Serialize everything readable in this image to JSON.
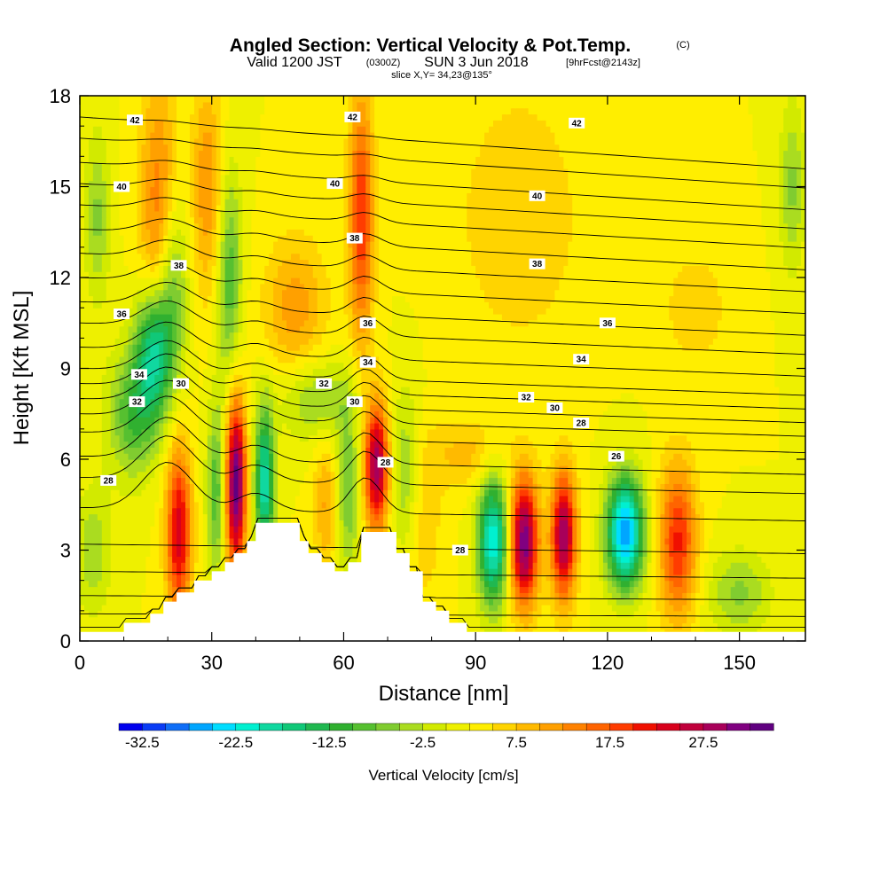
{
  "header": {
    "title": "Angled Section: Vertical Velocity & Pot.Temp.",
    "copyright": "(C)",
    "valid_main": "Valid 1200 JST",
    "valid_utc": "(0300Z)",
    "valid_date": "SUN 3 Jun 2018",
    "forecast": "[9hrFcst@2143z]",
    "slice": "slice X,Y= 34,23@135°"
  },
  "chart_data": {
    "type": "heatmap",
    "title": "Angled Section: Vertical Velocity & Pot.Temp.",
    "xlabel": "Distance [nm]",
    "ylabel": "Height [Kft MSL]",
    "xlim": [
      0,
      165
    ],
    "ylim": [
      0,
      18
    ],
    "xticks": [
      "0",
      "30",
      "60",
      "90",
      "120",
      "150"
    ],
    "yticks": [
      "0",
      "3",
      "6",
      "9",
      "12",
      "15",
      "18"
    ],
    "colorbar": {
      "label": "Vertical Velocity [cm/s]",
      "tick_labels": [
        "-32.5",
        "-22.5",
        "-12.5",
        "-2.5",
        "7.5",
        "17.5",
        "27.5"
      ],
      "levels": [
        -35,
        -32.5,
        -30,
        -27.5,
        -25,
        -22.5,
        -20,
        -17.5,
        -15,
        -12.5,
        -10,
        -7.5,
        -5,
        -2.5,
        0,
        2.5,
        5,
        7.5,
        10,
        12.5,
        15,
        17.5,
        20,
        22.5,
        25,
        27.5,
        30,
        32.5,
        35
      ],
      "colors": [
        "#0000ee",
        "#0a3cf5",
        "#0f6ef7",
        "#00a6ff",
        "#00ddff",
        "#00f0d0",
        "#10d8a0",
        "#10c878",
        "#20b850",
        "#30b030",
        "#56c030",
        "#80cc30",
        "#aadc20",
        "#d2ea00",
        "#eef000",
        "#ffee00",
        "#ffd400",
        "#ffba00",
        "#ffa000",
        "#ff8200",
        "#ff6400",
        "#ff3c00",
        "#f01000",
        "#d8001c",
        "#c0003c",
        "#a8005a",
        "#800080",
        "#600080"
      ]
    },
    "terrain_kft": [
      [
        0,
        0.3
      ],
      [
        10,
        0.3
      ],
      [
        10,
        0.6
      ],
      [
        16,
        0.6
      ],
      [
        16,
        0.9
      ],
      [
        19,
        0.9
      ],
      [
        19,
        1.3
      ],
      [
        22,
        1.3
      ],
      [
        22,
        1.6
      ],
      [
        26,
        1.6
      ],
      [
        26,
        2.0
      ],
      [
        30,
        2.0
      ],
      [
        30,
        2.3
      ],
      [
        33,
        2.3
      ],
      [
        33,
        2.6
      ],
      [
        35,
        2.6
      ],
      [
        35,
        2.9
      ],
      [
        38,
        2.9
      ],
      [
        38,
        3.3
      ],
      [
        40,
        3.3
      ],
      [
        40,
        3.9
      ],
      [
        50,
        3.9
      ],
      [
        50,
        3.3
      ],
      [
        52,
        3.3
      ],
      [
        52,
        2.9
      ],
      [
        55,
        2.9
      ],
      [
        55,
        2.6
      ],
      [
        58,
        2.6
      ],
      [
        58,
        2.3
      ],
      [
        61,
        2.3
      ],
      [
        61,
        2.6
      ],
      [
        64,
        2.6
      ],
      [
        64,
        3.6
      ],
      [
        72,
        3.6
      ],
      [
        72,
        2.9
      ],
      [
        75,
        2.9
      ],
      [
        75,
        2.3
      ],
      [
        78,
        2.3
      ],
      [
        78,
        1.3
      ],
      [
        81,
        1.3
      ],
      [
        81,
        1.0
      ],
      [
        84,
        1.0
      ],
      [
        84,
        0.6
      ],
      [
        88,
        0.6
      ],
      [
        88,
        0.3
      ],
      [
        165,
        0.3
      ]
    ],
    "velocity_cells": [
      {
        "x": 4,
        "y": 14,
        "amp": -8,
        "sx": 2,
        "sy": 2
      },
      {
        "x": 18,
        "y": 14,
        "amp": 13,
        "sx": 3,
        "sy": 3.2
      },
      {
        "x": 21,
        "y": 12,
        "amp": -11,
        "sx": 2.5,
        "sy": 2.2
      },
      {
        "x": 17,
        "y": 9.6,
        "amp": -22,
        "sx": 3,
        "sy": 1.6
      },
      {
        "x": 12,
        "y": 7.5,
        "amp": -12,
        "sx": 4,
        "sy": 1.5
      },
      {
        "x": 22.5,
        "y": 3.6,
        "amp": 22,
        "sx": 2,
        "sy": 2
      },
      {
        "x": 29,
        "y": 15,
        "amp": 10,
        "sx": 2.5,
        "sy": 2.5
      },
      {
        "x": 34,
        "y": 12,
        "amp": -12,
        "sx": 2,
        "sy": 2.5
      },
      {
        "x": 31,
        "y": 5,
        "amp": -12,
        "sx": 1.5,
        "sy": 2
      },
      {
        "x": 35.5,
        "y": 5.2,
        "amp": 32,
        "sx": 1.6,
        "sy": 2
      },
      {
        "x": 42,
        "y": 5.2,
        "amp": -22,
        "sx": 1.6,
        "sy": 1.8
      },
      {
        "x": 49,
        "y": 11,
        "amp": 9,
        "sx": 5,
        "sy": 1.6
      },
      {
        "x": 54,
        "y": 8,
        "amp": -8,
        "sx": 6,
        "sy": 1
      },
      {
        "x": 56,
        "y": 4.5,
        "amp": 8,
        "sx": 2,
        "sy": 1.6
      },
      {
        "x": 61,
        "y": 5,
        "amp": -10,
        "sx": 2,
        "sy": 2
      },
      {
        "x": 64,
        "y": 14,
        "amp": 17,
        "sx": 2,
        "sy": 3
      },
      {
        "x": 67.5,
        "y": 5.8,
        "amp": 27,
        "sx": 2,
        "sy": 1.5
      },
      {
        "x": 74,
        "y": 5.5,
        "amp": -8,
        "sx": 2.5,
        "sy": 2
      },
      {
        "x": 78,
        "y": 4,
        "amp": 5,
        "sx": 3,
        "sy": 2
      },
      {
        "x": 94,
        "y": 3.3,
        "amp": -25,
        "sx": 2.5,
        "sy": 1.5
      },
      {
        "x": 101,
        "y": 3.3,
        "amp": 30,
        "sx": 2.3,
        "sy": 1.5
      },
      {
        "x": 110,
        "y": 3.5,
        "amp": 27,
        "sx": 2,
        "sy": 1.5
      },
      {
        "x": 124,
        "y": 3.6,
        "amp": -30,
        "sx": 3,
        "sy": 1.3
      },
      {
        "x": 136,
        "y": 3.3,
        "amp": 18,
        "sx": 3,
        "sy": 1.8
      },
      {
        "x": 100,
        "y": 14,
        "amp": 5,
        "sx": 10,
        "sy": 3
      },
      {
        "x": 140,
        "y": 11,
        "amp": 4,
        "sx": 6,
        "sy": 1.5
      },
      {
        "x": 162,
        "y": 15,
        "amp": -8,
        "sx": 2,
        "sy": 2
      },
      {
        "x": 3,
        "y": 3,
        "amp": -7,
        "sx": 3,
        "sy": 1.5
      },
      {
        "x": 150,
        "y": 1.6,
        "amp": -8,
        "sx": 5,
        "sy": 1
      },
      {
        "x": 88,
        "y": 6.2,
        "amp": 6,
        "sx": 6,
        "sy": 0.8
      }
    ],
    "theta_labels": [
      {
        "text": "42",
        "x": 12.5,
        "y": 17.2
      },
      {
        "text": "42",
        "x": 62,
        "y": 17.3
      },
      {
        "text": "42",
        "x": 113,
        "y": 17.1
      },
      {
        "text": "40",
        "x": 9.5,
        "y": 15.0
      },
      {
        "text": "40",
        "x": 58,
        "y": 15.1
      },
      {
        "text": "40",
        "x": 104,
        "y": 14.7
      },
      {
        "text": "38",
        "x": 22.5,
        "y": 12.4
      },
      {
        "text": "38",
        "x": 62.5,
        "y": 13.3
      },
      {
        "text": "38",
        "x": 104,
        "y": 12.45
      },
      {
        "text": "36",
        "x": 9.5,
        "y": 10.8
      },
      {
        "text": "36",
        "x": 65.5,
        "y": 10.5
      },
      {
        "text": "36",
        "x": 120,
        "y": 10.5
      },
      {
        "text": "34",
        "x": 13.5,
        "y": 8.8
      },
      {
        "text": "34",
        "x": 65.5,
        "y": 9.2
      },
      {
        "text": "34",
        "x": 114,
        "y": 9.3
      },
      {
        "text": "32",
        "x": 13,
        "y": 7.9
      },
      {
        "text": "32",
        "x": 55.5,
        "y": 8.5
      },
      {
        "text": "32",
        "x": 101.5,
        "y": 8.05
      },
      {
        "text": "30",
        "x": 23,
        "y": 8.5
      },
      {
        "text": "30",
        "x": 62.5,
        "y": 7.9
      },
      {
        "text": "30",
        "x": 108,
        "y": 7.7
      },
      {
        "text": "28",
        "x": 6.5,
        "y": 5.3
      },
      {
        "text": "28",
        "x": 69.5,
        "y": 5.9
      },
      {
        "text": "28",
        "x": 114,
        "y": 7.2
      },
      {
        "text": "28",
        "x": 86.5,
        "y": 3.0
      },
      {
        "text": "26",
        "x": 122,
        "y": 6.1
      }
    ],
    "theta_levels_kft": [
      0.45,
      0.9,
      1.5,
      2.3,
      3.2,
      4.4,
      5.4,
      6.1,
      6.9,
      7.5,
      8.0,
      8.5,
      9.0,
      9.7,
      10.5,
      11.2,
      12.0,
      12.8,
      13.6,
      14.4,
      15.1,
      15.8,
      16.6,
      17.3
    ]
  }
}
